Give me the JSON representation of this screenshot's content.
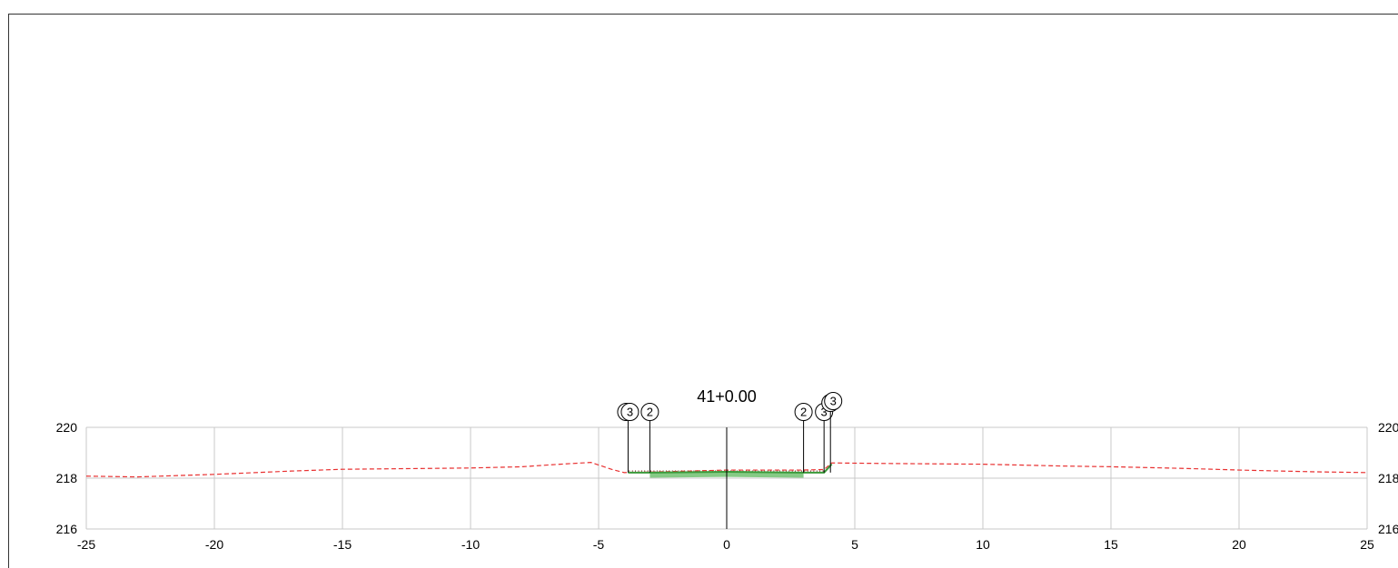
{
  "section": {
    "station_label": "41+0.00",
    "x_axis": {
      "min": -25,
      "max": 25,
      "ticks": [
        -25,
        -20,
        -15,
        -10,
        -5,
        0,
        5,
        10,
        15,
        20,
        25
      ]
    },
    "y_axis": {
      "min": 216,
      "max": 220,
      "ticks": [
        216,
        218,
        220
      ],
      "right_labels": [
        "216",
        "218",
        "220"
      ]
    },
    "colors": {
      "ground": "#e83030",
      "design": "#3a9a3a",
      "fill": "#5cb85c",
      "grid": "#c8c8c8"
    },
    "ground_profile": [
      [
        -25,
        218.08
      ],
      [
        -23,
        218.05
      ],
      [
        -20,
        218.15
      ],
      [
        -17,
        218.28
      ],
      [
        -15,
        218.35
      ],
      [
        -12,
        218.38
      ],
      [
        -10,
        218.4
      ],
      [
        -8,
        218.45
      ],
      [
        -6.5,
        218.55
      ],
      [
        -5.3,
        218.62
      ],
      [
        -4.5,
        218.35
      ],
      [
        -4,
        218.22
      ],
      [
        -3,
        218.24
      ],
      [
        0,
        218.32
      ],
      [
        3,
        218.32
      ],
      [
        3.8,
        218.34
      ],
      [
        4.1,
        218.6
      ],
      [
        6,
        218.58
      ],
      [
        10,
        218.55
      ],
      [
        13,
        218.48
      ],
      [
        15,
        218.45
      ],
      [
        18,
        218.38
      ],
      [
        20,
        218.32
      ],
      [
        23,
        218.25
      ],
      [
        25,
        218.22
      ]
    ],
    "design_profile": [
      [
        -3.85,
        218.22
      ],
      [
        -3.0,
        218.22
      ],
      [
        0,
        218.25
      ],
      [
        3.0,
        218.22
      ],
      [
        3.8,
        218.22
      ],
      [
        4.1,
        218.55
      ]
    ],
    "markers_left": [
      {
        "x": -3.85,
        "labels": [
          "3",
          "3"
        ]
      },
      {
        "x": -3.0,
        "labels": [
          "2"
        ]
      }
    ],
    "markers_right": [
      {
        "x": 3.0,
        "labels": [
          "2"
        ]
      },
      {
        "x": 3.8,
        "labels": [
          "3"
        ]
      },
      {
        "x": 4.05,
        "labels": [
          "3",
          "3"
        ]
      }
    ]
  }
}
